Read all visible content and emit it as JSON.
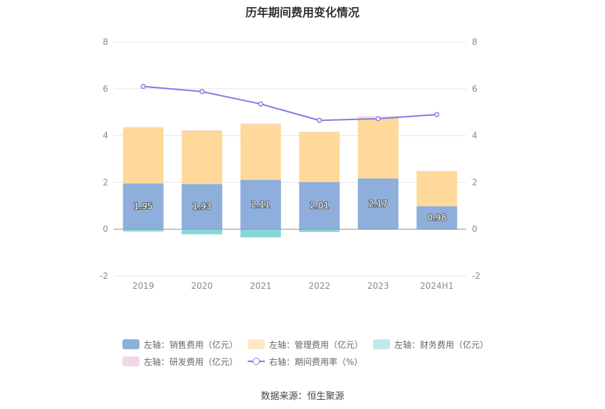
{
  "chart_data": {
    "type": "bar",
    "title": "历年期间费用变化情况",
    "categories": [
      "2019",
      "2020",
      "2021",
      "2022",
      "2023",
      "2024H1"
    ],
    "series": [
      {
        "name": "左轴：销售费用（亿元）",
        "axis": "left",
        "color": "#8eaedc",
        "values": [
          1.95,
          1.93,
          2.11,
          2.01,
          2.17,
          0.98
        ]
      },
      {
        "name": "左轴：管理费用（亿元）",
        "axis": "left",
        "color": "#ffd99a",
        "values": [
          2.38,
          2.28,
          2.37,
          2.14,
          2.6,
          1.5
        ]
      },
      {
        "name": "左轴：财务费用（亿元）",
        "axis": "left",
        "color": "#86d6da",
        "values": [
          -0.1,
          -0.22,
          -0.35,
          -0.12,
          -0.02,
          -0.02
        ]
      },
      {
        "name": "左轴：研发费用（亿元）",
        "axis": "left",
        "color": "#f3d6ea",
        "values": [
          0.04,
          0.02,
          0.04,
          0.02,
          0.06,
          0.01
        ]
      },
      {
        "name": "右轴：期间费用率（%）",
        "axis": "right",
        "type": "line",
        "color": "#7b7fe6",
        "values": [
          6.1,
          5.88,
          5.35,
          4.65,
          4.72,
          4.9
        ]
      }
    ],
    "data_labels": [
      "1.95",
      "1.93",
      "2.11",
      "2.01",
      "2.17",
      "0.98"
    ],
    "left_axis": {
      "ylim": [
        -2,
        8
      ],
      "ticks": [
        "-2",
        "0",
        "2",
        "4",
        "6",
        "8"
      ]
    },
    "right_axis": {
      "ylim": [
        -2,
        8
      ],
      "ticks": [
        "-2",
        "0",
        "2",
        "4",
        "6",
        "8"
      ]
    },
    "grid": true,
    "legend_position": "bottom"
  },
  "legend": {
    "sales": "左轴：销售费用（亿元）",
    "admin": "左轴：管理费用（亿元）",
    "finance": "左轴：财务费用（亿元）",
    "rnd": "左轴：研发费用（亿元）",
    "rate": "右轴：期间费用率（%）"
  },
  "colors": {
    "sales": "#8eaedc",
    "admin": "#ffd99a",
    "finance": "#86d6da",
    "rnd": "#f3d6ea",
    "rate": "#7b7fe6"
  },
  "source": "数据来源：恒生聚源"
}
